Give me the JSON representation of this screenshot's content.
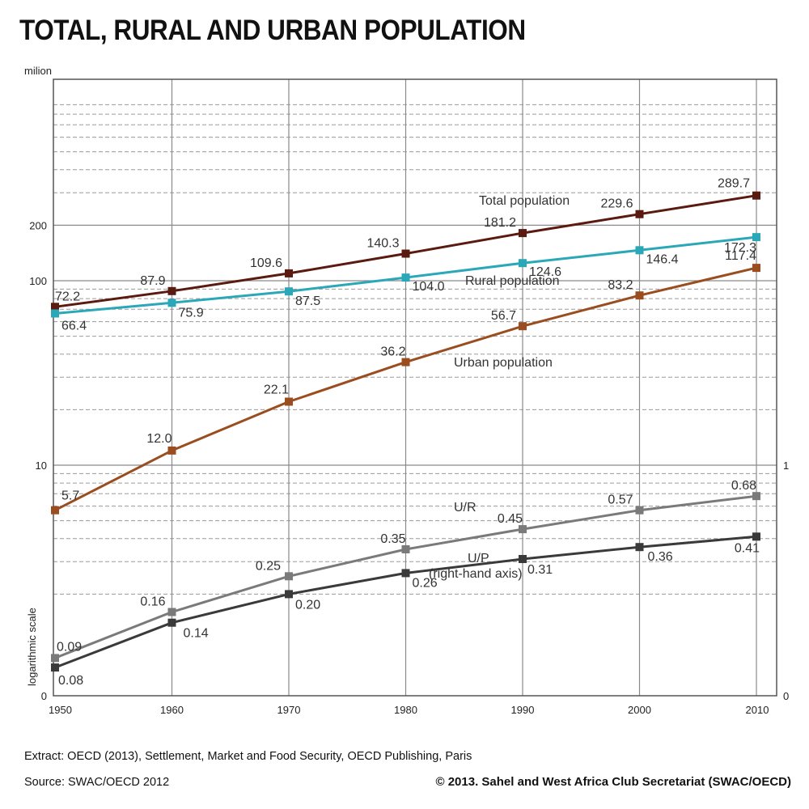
{
  "chart_data": {
    "type": "line",
    "title": "TOTAL, RURAL AND URBAN POPULATION",
    "left_axis_unit": "milion",
    "scale_note": "logarithmic scale",
    "x": [
      1950,
      1960,
      1970,
      1980,
      1990,
      2000,
      2010
    ],
    "x_tick_labels": [
      "1950",
      "1960",
      "1970",
      "1980",
      "1990",
      "2000",
      "2010"
    ],
    "left_tick_labels": [
      "200",
      "100",
      "10",
      "0"
    ],
    "right_tick_labels": [
      "1",
      "0"
    ],
    "grid": true,
    "series": [
      {
        "name": "Total population",
        "axis": "left",
        "color": "#5a1a0f",
        "values": [
          72.2,
          87.9,
          109.6,
          140.3,
          181.2,
          229.6,
          289.7
        ],
        "labels": [
          "72.2",
          "87.9",
          "109.6",
          "140.3",
          "181.2",
          "229.6",
          "289.7"
        ]
      },
      {
        "name": "Rural population",
        "axis": "left",
        "color": "#2aa8b8",
        "values": [
          66.4,
          75.9,
          87.5,
          104.0,
          124.6,
          146.4,
          172.3
        ],
        "labels": [
          "66.4",
          "75.9",
          "87.5",
          "104.0",
          "124.6",
          "146.4",
          "172.3"
        ]
      },
      {
        "name": "Urban population",
        "axis": "left",
        "color": "#9a4d1e",
        "values": [
          5.7,
          12.0,
          22.1,
          36.2,
          56.7,
          83.2,
          117.4
        ],
        "labels": [
          "5.7",
          "12.0",
          "22.1",
          "36.2",
          "56.7",
          "83.2",
          "117.4"
        ]
      },
      {
        "name": "U/R",
        "axis": "right",
        "color": "#7a7a7a",
        "values": [
          0.09,
          0.16,
          0.25,
          0.35,
          0.45,
          0.57,
          0.68
        ],
        "labels": [
          "0.09",
          "0.16",
          "0.25",
          "0.35",
          "0.45",
          "0.57",
          "0.68"
        ]
      },
      {
        "name": "U/P",
        "name_note": "(right-hand axis)",
        "axis": "right",
        "color": "#3a3a3a",
        "values": [
          0.08,
          0.14,
          0.2,
          0.26,
          0.31,
          0.36,
          0.41
        ],
        "labels": [
          "0.08",
          "0.14",
          "0.20",
          "0.26",
          "0.31",
          "0.36",
          "0.41"
        ]
      }
    ]
  },
  "footer": {
    "extract": "Extract: OECD (2013), Settlement, Market and Food Security, OECD Publishing, Paris",
    "source": "Source: SWAC/OECD 2012",
    "copyright": "© 2013. Sahel and West Africa Club Secretariat (SWAC/OECD)"
  }
}
